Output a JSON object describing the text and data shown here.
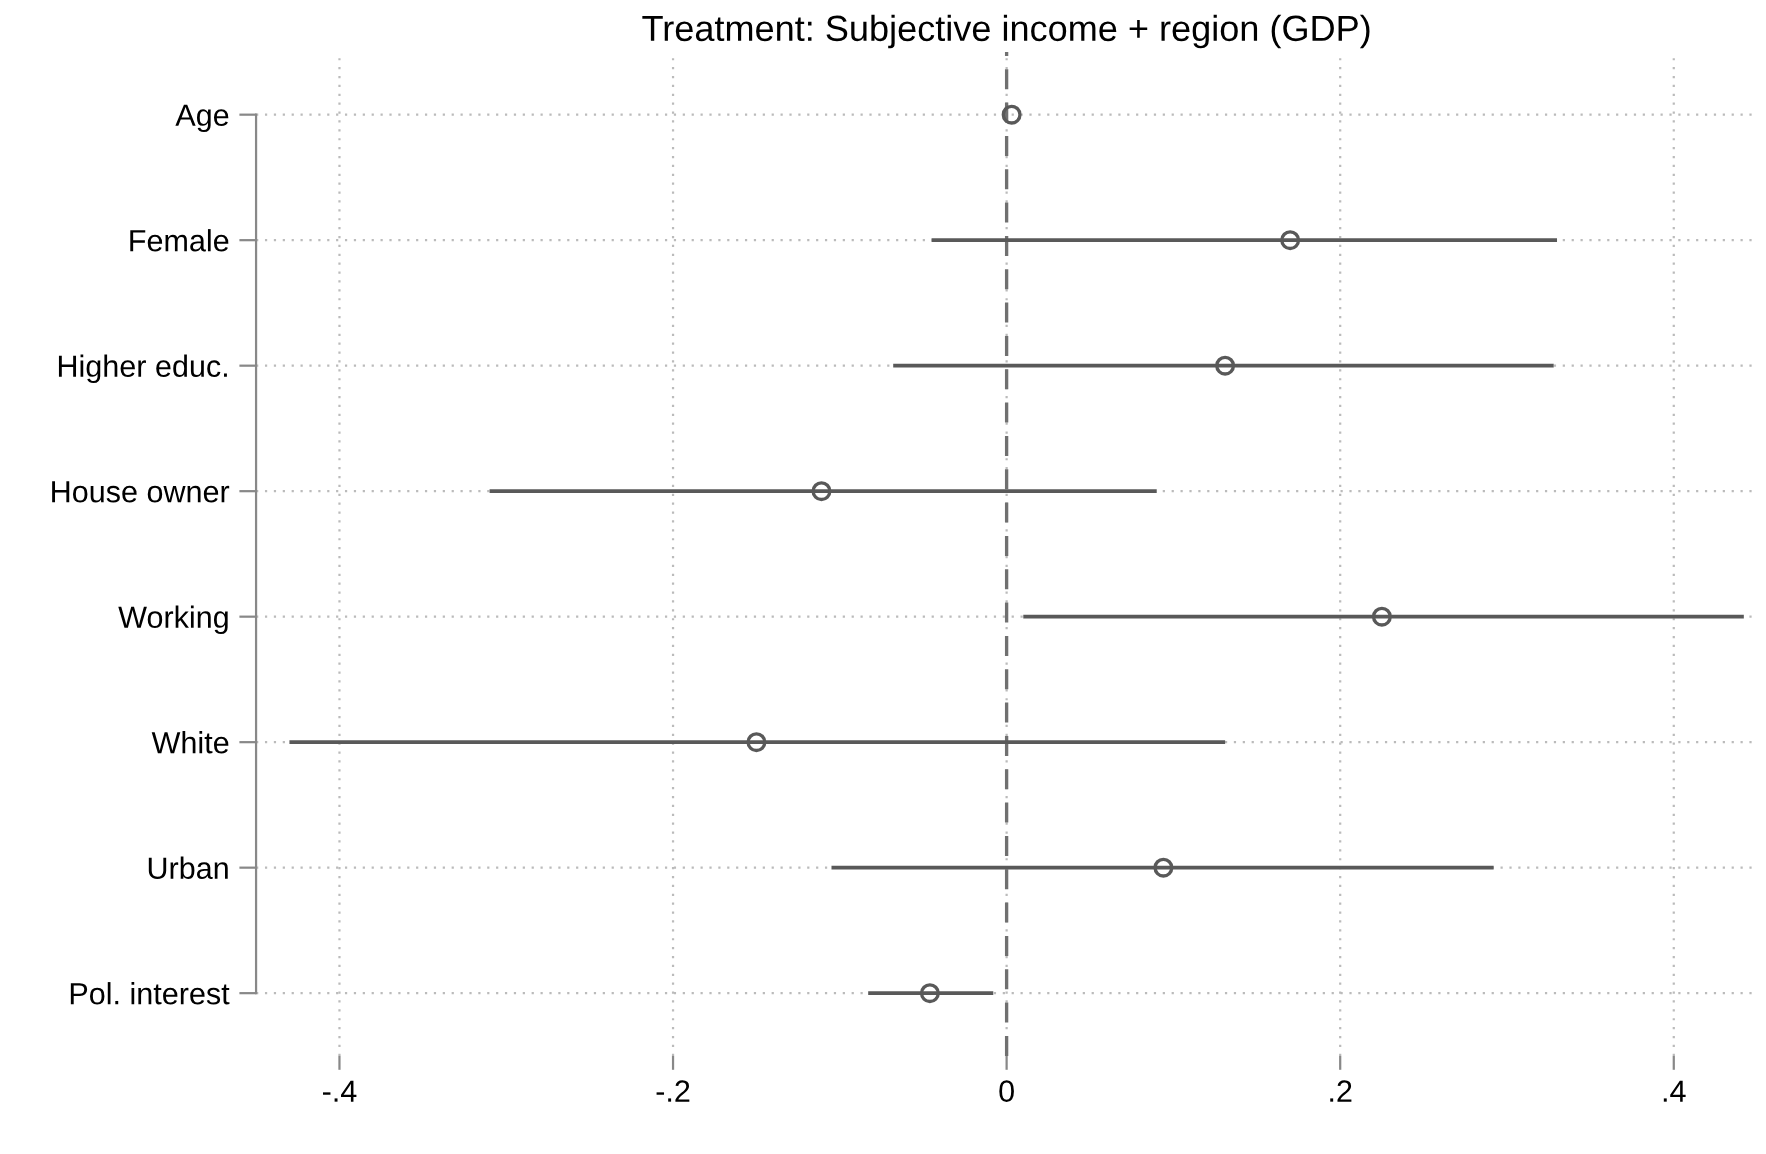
{
  "chart_data": {
    "type": "scatter",
    "orientation": "horizontal",
    "title": "Treatment: Subjective income + region (GDP)",
    "categories": [
      "Age",
      "Female",
      "Higher educ.",
      "House owner",
      "Working",
      "White",
      "Urban",
      "Pol. interest"
    ],
    "values": [
      0.003,
      0.17,
      0.131,
      -0.111,
      0.225,
      -0.15,
      0.094,
      -0.046
    ],
    "errors": [
      null,
      [
        -0.045,
        0.33
      ],
      [
        -0.068,
        0.328
      ],
      [
        -0.31,
        0.09
      ],
      [
        0.01,
        0.442
      ],
      [
        -0.43,
        0.131
      ],
      [
        -0.105,
        0.292
      ],
      [
        -0.083,
        -0.008
      ]
    ],
    "color": "#595959",
    "marker": "circle",
    "xlim": [
      -0.45,
      0.45
    ],
    "xticks": [
      {
        "value": -0.4,
        "label": "-.4"
      },
      {
        "value": -0.2,
        "label": "-.2"
      },
      {
        "value": 0,
        "label": "0"
      },
      {
        "value": 0.2,
        "label": ".2"
      },
      {
        "value": 0.4,
        "label": ".4"
      }
    ],
    "ref_lines": [
      {
        "axis": "x",
        "value": 0,
        "color": "#707070",
        "line_style": "dashed"
      }
    ],
    "grid": true
  }
}
